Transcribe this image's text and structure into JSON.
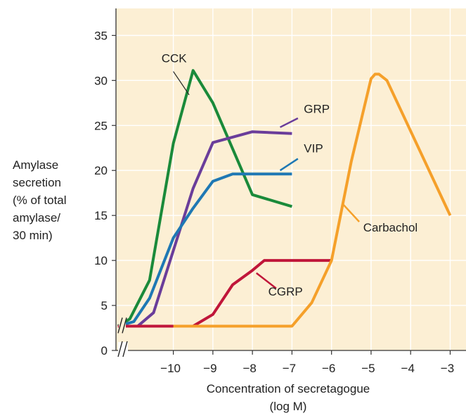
{
  "chart_data": {
    "type": "line",
    "title": "",
    "xlabel_lines": [
      "Concentration of secretagogue",
      "(log M)"
    ],
    "ylabel_lines": [
      "Amylase",
      "secretion",
      "(% of total",
      "amylase/",
      "30 min)"
    ],
    "xlim": [
      -11.45,
      -2.6
    ],
    "ylim": [
      0,
      38
    ],
    "x_ticks": [
      {
        "value": -10,
        "label": "−10"
      },
      {
        "value": -9,
        "label": "−9"
      },
      {
        "value": -8,
        "label": "−8"
      },
      {
        "value": -7,
        "label": "−7"
      },
      {
        "value": -6,
        "label": "−6"
      },
      {
        "value": -5,
        "label": "−5"
      },
      {
        "value": -4,
        "label": "−4"
      },
      {
        "value": -3,
        "label": "−3"
      }
    ],
    "y_ticks": [
      {
        "value": 0,
        "label": "0"
      },
      {
        "value": 5,
        "label": "5"
      },
      {
        "value": 10,
        "label": "10"
      },
      {
        "value": 15,
        "label": "15"
      },
      {
        "value": 20,
        "label": "20"
      },
      {
        "value": 25,
        "label": "25"
      },
      {
        "value": 30,
        "label": "30"
      },
      {
        "value": 35,
        "label": "35"
      }
    ],
    "grid": true,
    "axis_break": true,
    "plot_background": "#fcefd4",
    "grid_color": "#ffffff",
    "series": [
      {
        "name": "CCK",
        "color": "#1a8a3a",
        "points": [
          [
            -11.4,
            2.7
          ],
          [
            -11.1,
            3.5
          ],
          [
            -10.6,
            7.8
          ],
          [
            -10.0,
            23.0
          ],
          [
            -9.5,
            31.1
          ],
          [
            -9.0,
            27.5
          ],
          [
            -8.0,
            17.3
          ],
          [
            -7.0,
            16.0
          ]
        ],
        "label_at": [
          -10.3,
          32.0
        ],
        "leader": [
          [
            -10.0,
            31.0
          ],
          [
            -9.6,
            28.4
          ]
        ]
      },
      {
        "name": "GRP",
        "color": "#6a3d9a",
        "points": [
          [
            -11.4,
            2.7
          ],
          [
            -10.9,
            2.7
          ],
          [
            -10.5,
            4.2
          ],
          [
            -9.5,
            18.0
          ],
          [
            -9.0,
            23.1
          ],
          [
            -8.0,
            24.3
          ],
          [
            -7.0,
            24.1
          ]
        ],
        "label_at": [
          -6.7,
          26.4
        ],
        "leader": [
          [
            -6.85,
            25.8
          ],
          [
            -7.3,
            24.8
          ]
        ]
      },
      {
        "name": "VIP",
        "color": "#1e78b4",
        "points": [
          [
            -11.4,
            2.7
          ],
          [
            -11.0,
            3.2
          ],
          [
            -10.6,
            5.8
          ],
          [
            -10.0,
            12.5
          ],
          [
            -9.5,
            15.8
          ],
          [
            -9.0,
            18.8
          ],
          [
            -8.5,
            19.6
          ],
          [
            -7.0,
            19.6
          ]
        ],
        "label_at": [
          -6.7,
          22.0
        ],
        "leader": [
          [
            -6.85,
            21.3
          ],
          [
            -7.3,
            20.0
          ]
        ]
      },
      {
        "name": "CGRP",
        "color": "#c0163a",
        "points": [
          [
            -11.4,
            2.7
          ],
          [
            -9.5,
            2.7
          ],
          [
            -9.0,
            4.0
          ],
          [
            -8.5,
            7.3
          ],
          [
            -8.0,
            8.9
          ],
          [
            -7.7,
            10.0
          ],
          [
            -6.0,
            10.0
          ]
        ],
        "label_at": [
          -7.6,
          6.1
        ],
        "leader": [
          [
            -7.4,
            6.9
          ],
          [
            -7.9,
            8.6
          ]
        ]
      },
      {
        "name": "Carbachol",
        "color": "#f5a02a",
        "points": [
          [
            -10.0,
            2.7
          ],
          [
            -7.0,
            2.7
          ],
          [
            -6.5,
            5.3
          ],
          [
            -6.0,
            10.0
          ],
          [
            -5.5,
            21.0
          ],
          [
            -5.0,
            30.2
          ],
          [
            -4.9,
            30.7
          ],
          [
            -4.8,
            30.7
          ],
          [
            -4.6,
            30.0
          ],
          [
            -3.0,
            15.0
          ]
        ],
        "label_at": [
          -5.2,
          13.2
        ],
        "leader": [
          [
            -5.3,
            14.3
          ],
          [
            -5.7,
            16.2
          ]
        ]
      }
    ]
  }
}
